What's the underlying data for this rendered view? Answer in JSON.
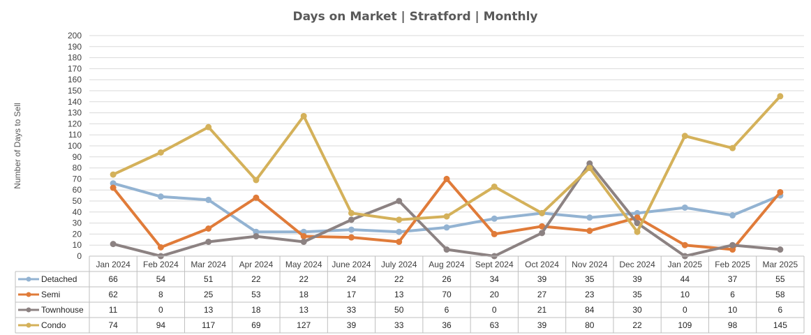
{
  "chart_data": {
    "type": "line",
    "title": "Days on Market | Stratford | Monthly",
    "ylabel": "Number of Days to Sell",
    "xlabel": "",
    "ylim": [
      0,
      200
    ],
    "ytick_step": 10,
    "grid": true,
    "legend": "data-table-left",
    "categories": [
      "Jan 2024",
      "Feb 2024",
      "Mar 2024",
      "Apr 2024",
      "May 2024",
      "June 2024",
      "July 2024",
      "Aug 2024",
      "Sept 2024",
      "Oct 2024",
      "Nov 2024",
      "Dec 2024",
      "Jan 2025",
      "Feb 2025",
      "Mar 2025"
    ],
    "series": [
      {
        "name": "Detached",
        "color": "#93b3d2",
        "values": [
          66,
          54,
          51,
          22,
          22,
          24,
          22,
          26,
          34,
          39,
          35,
          39,
          44,
          37,
          55
        ]
      },
      {
        "name": "Semi",
        "color": "#e07b39",
        "values": [
          62,
          8,
          25,
          53,
          18,
          17,
          13,
          70,
          20,
          27,
          23,
          35,
          10,
          6,
          58
        ]
      },
      {
        "name": "Townhouse",
        "color": "#8c8282",
        "values": [
          11,
          0,
          13,
          18,
          13,
          33,
          50,
          6,
          0,
          21,
          84,
          30,
          0,
          10,
          6
        ]
      },
      {
        "name": "Condo",
        "color": "#d4b15a",
        "values": [
          74,
          94,
          117,
          69,
          127,
          39,
          33,
          36,
          63,
          39,
          80,
          22,
          109,
          98,
          145
        ]
      }
    ]
  }
}
